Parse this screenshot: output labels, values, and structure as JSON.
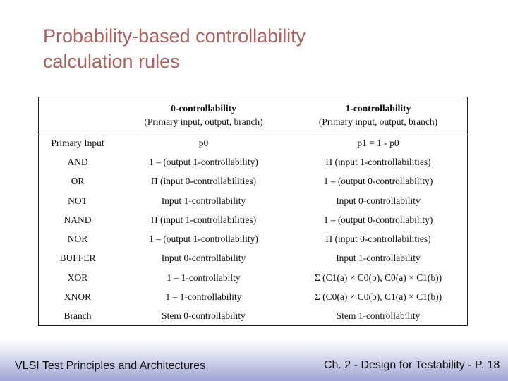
{
  "slide": {
    "title_line1": "Probability-based controllability",
    "title_line2": "calculation rules"
  },
  "table": {
    "headers": [
      {
        "title": "",
        "sub": ""
      },
      {
        "title": "0-controllability",
        "sub": "(Primary input, output, branch)"
      },
      {
        "title": "1-controllability",
        "sub": "(Primary input, output, branch)"
      }
    ],
    "rows": [
      {
        "element": "Primary Input",
        "c0": "p0",
        "c1": "p1 = 1 - p0"
      },
      {
        "element": "AND",
        "c0": "1 – (output 1-controllability)",
        "c1": "Π (input 1-controllabilities)"
      },
      {
        "element": "OR",
        "c0": "Π (input 0-controllabilities)",
        "c1": "1 – (output 0-controllability)"
      },
      {
        "element": "NOT",
        "c0": "Input 1-controllability",
        "c1": "Input 0-controllability"
      },
      {
        "element": "NAND",
        "c0": "Π (input 1-controllabilities)",
        "c1": "1 – (output 0-controllability)"
      },
      {
        "element": "NOR",
        "c0": "1 – (output 1-controllability)",
        "c1": "Π (input 0-controllabilities)"
      },
      {
        "element": "BUFFER",
        "c0": "Input 0-controllability",
        "c1": "Input 1-controllability"
      },
      {
        "element": "XOR",
        "c0": "1 – 1-controllabilty",
        "c1": "Σ (C1(a) × C0(b), C0(a) × C1(b))"
      },
      {
        "element": "XNOR",
        "c0": "1 – 1-controllability",
        "c1": "Σ (C0(a) × C0(b), C1(a) × C1(b))"
      },
      {
        "element": "Branch",
        "c0": "Stem 0-controllability",
        "c1": "Stem 1-controllability"
      }
    ]
  },
  "footer": {
    "left": "VLSI Test Principles and Architectures",
    "right": "Ch. 2 - Design for Testability - P. 18"
  },
  "colors": {
    "title": "#b0605c",
    "footer_band": "#9ea5d6"
  }
}
